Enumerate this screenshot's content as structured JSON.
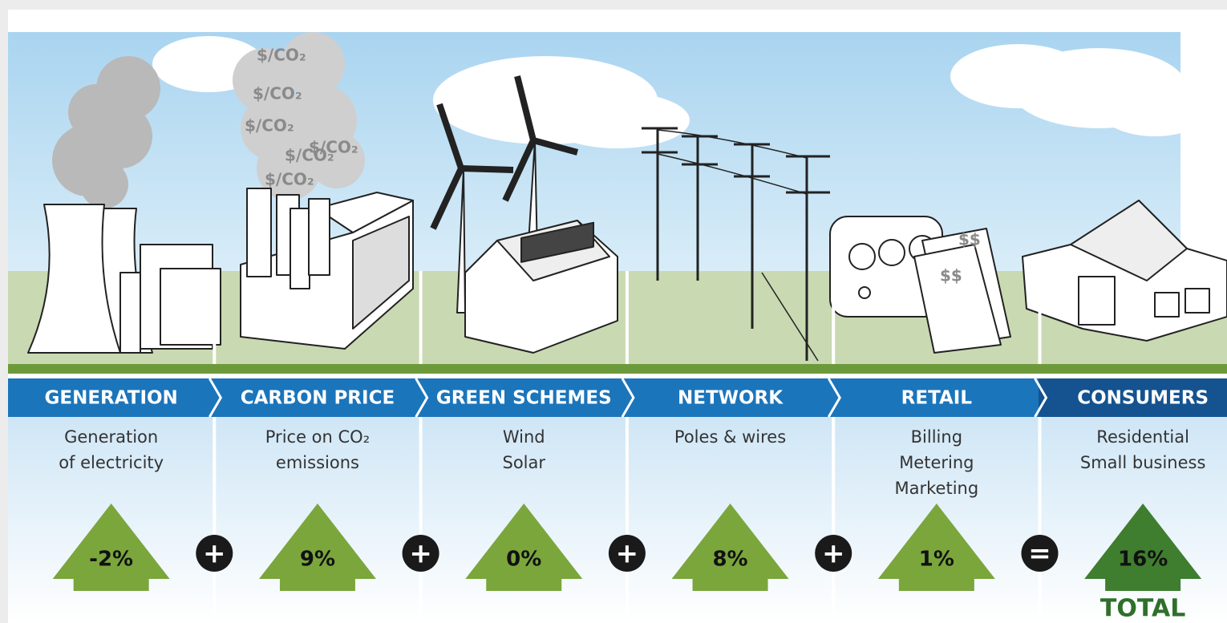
{
  "smoke_label": "$/CO₂",
  "bill_label": "$$",
  "stages": [
    {
      "name": "GENERATION",
      "description": [
        "Generation",
        "of electricity"
      ],
      "change": "-2%"
    },
    {
      "name": "CARBON PRICE",
      "description": [
        "Price on CO₂",
        "emissions"
      ],
      "change": "9%"
    },
    {
      "name": "GREEN SCHEMES",
      "description": [
        "Wind",
        "Solar"
      ],
      "change": "0%"
    },
    {
      "name": "NETWORK",
      "description": [
        "Poles & wires"
      ],
      "change": "8%"
    },
    {
      "name": "RETAIL",
      "description": [
        "Billing",
        "Metering",
        "Marketing"
      ],
      "change": "1%"
    },
    {
      "name": "CONSUMERS",
      "description": [
        "Residential",
        "Small business"
      ],
      "change": "16%"
    }
  ],
  "operators": [
    "+",
    "+",
    "+",
    "+",
    "="
  ],
  "total_label": "TOTAL"
}
